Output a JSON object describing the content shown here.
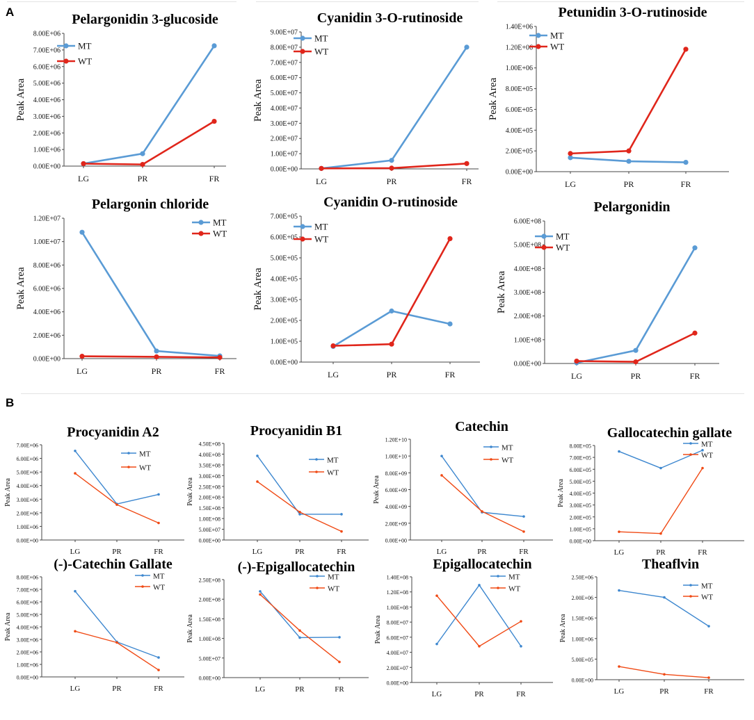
{
  "panels": [
    "A",
    "B"
  ],
  "colors": {
    "MT": "#5a9bd5",
    "WT": "#e0261b",
    "MT_b": "#3d87cf",
    "WT_b": "#f04a15"
  },
  "chart_data": [
    {
      "type": "line",
      "title": "Pelargonidin 3-glucoside",
      "ylabel": "Peak Area",
      "categories": [
        "LG",
        "PR",
        "FR"
      ],
      "yticks": [
        "0.00E+00",
        "1.00E+06",
        "2.00E+06",
        "3.00E+06",
        "4.00E+06",
        "5.00E+06",
        "6.00E+06",
        "7.00E+06",
        "8.00E+06"
      ],
      "ylim": [
        0,
        8000000
      ],
      "series": [
        {
          "name": "MT",
          "values": [
            150000,
            750000,
            7250000
          ]
        },
        {
          "name": "WT",
          "values": [
            150000,
            100000,
            2700000
          ]
        }
      ]
    },
    {
      "type": "line",
      "title": "Cyanidin 3-O-rutinoside",
      "ylabel": "Peak Area",
      "categories": [
        "LG",
        "PR",
        "FR"
      ],
      "yticks": [
        "0.00E+00",
        "1.00E+07",
        "2.00E+07",
        "3.00E+07",
        "4.00E+07",
        "5.00E+07",
        "6.00E+07",
        "7.00E+07",
        "8.00E+07",
        "9.00E+07"
      ],
      "ylim": [
        0,
        90000000
      ],
      "series": [
        {
          "name": "MT",
          "values": [
            300000,
            5600000,
            80000000
          ]
        },
        {
          "name": "WT",
          "values": [
            300000,
            500000,
            3500000
          ]
        }
      ]
    },
    {
      "type": "line",
      "title": "Petunidin 3-O-rutinoside",
      "ylabel": "Peak Area",
      "categories": [
        "LG",
        "PR",
        "FR"
      ],
      "yticks": [
        "0.00E+00",
        "2.00E+05",
        "4.00E+05",
        "6.00E+05",
        "8.00E+05",
        "1.00E+06",
        "1.20E+06",
        "1.40E+06"
      ],
      "ylim": [
        0,
        1400000
      ],
      "series": [
        {
          "name": "MT",
          "values": [
            135000,
            100000,
            90000
          ]
        },
        {
          "name": "WT",
          "values": [
            175000,
            200000,
            1180000
          ]
        }
      ]
    },
    {
      "type": "line",
      "title": "Pelargonin chloride",
      "ylabel": "Peak Area",
      "categories": [
        "LG",
        "PR",
        "FR"
      ],
      "yticks": [
        "0.00E+00",
        "2.00E+06",
        "4.00E+06",
        "6.00E+06",
        "8.00E+06",
        "1.00E+07",
        "1.20E+07"
      ],
      "ylim": [
        0,
        12000000
      ],
      "series": [
        {
          "name": "MT",
          "values": [
            10800000,
            650000,
            230000
          ]
        },
        {
          "name": "WT",
          "values": [
            200000,
            150000,
            100000
          ]
        }
      ]
    },
    {
      "type": "line",
      "title": "Cyanidin O-rutinoside",
      "ylabel": "Peak Area",
      "categories": [
        "LG",
        "PR",
        "FR"
      ],
      "yticks": [
        "0.00E+00",
        "1.00E+05",
        "2.00E+05",
        "3.00E+05",
        "4.00E+05",
        "5.00E+05",
        "6.00E+05",
        "7.00E+05"
      ],
      "ylim": [
        0,
        700000
      ],
      "series": [
        {
          "name": "MT",
          "values": [
            75000,
            245000,
            183000
          ]
        },
        {
          "name": "WT",
          "values": [
            78000,
            86000,
            592000
          ]
        }
      ]
    },
    {
      "type": "line",
      "title": "Pelargonidin",
      "ylabel": "Peak Area",
      "categories": [
        "LG",
        "PR",
        "FR"
      ],
      "yticks": [
        "0.00E+00",
        "1.00E+08",
        "2.00E+08",
        "3.00E+08",
        "4.00E+08",
        "5.00E+08",
        "6.00E+08"
      ],
      "ylim": [
        0,
        600000000
      ],
      "series": [
        {
          "name": "MT",
          "values": [
            3000000,
            55000000,
            487000000
          ]
        },
        {
          "name": "WT",
          "values": [
            10000000,
            7000000,
            128000000
          ]
        }
      ]
    },
    {
      "type": "line",
      "title": "Procyanidin A2",
      "ylabel": "Peak Area",
      "categories": [
        "LG",
        "PR",
        "FR"
      ],
      "yticks": [
        "0.00E+00",
        "1.00E+06",
        "2.00E+06",
        "3.00E+06",
        "4.00E+06",
        "5.00E+06",
        "6.00E+06",
        "7.00E+06"
      ],
      "ylim": [
        0,
        7000000
      ],
      "series": [
        {
          "name": "MT",
          "values": [
            6550000,
            2650000,
            3350000
          ]
        },
        {
          "name": "WT",
          "values": [
            4900000,
            2600000,
            1250000
          ]
        }
      ]
    },
    {
      "type": "line",
      "title": "Procyanidin B1",
      "ylabel": "Peak Area",
      "categories": [
        "LG",
        "PR",
        "FR"
      ],
      "yticks": [
        "0.00E+00",
        "5.00E+07",
        "1.00E+08",
        "1.50E+08",
        "2.00E+08",
        "2.50E+08",
        "3.00E+08",
        "3.50E+08",
        "4.00E+08",
        "4.50E+08"
      ],
      "ylim": [
        0,
        450000000
      ],
      "series": [
        {
          "name": "MT",
          "values": [
            392000000,
            120000000,
            120000000
          ]
        },
        {
          "name": "WT",
          "values": [
            272000000,
            130000000,
            40000000
          ]
        }
      ]
    },
    {
      "type": "line",
      "title": "Catechin",
      "ylabel": "Peak Area",
      "categories": [
        "LG",
        "PR",
        "FR"
      ],
      "yticks": [
        "0.00E+00",
        "2.00E+09",
        "4.00E+09",
        "6.00E+09",
        "8.00E+09",
        "1.00E+10",
        "1.20E+10"
      ],
      "ylim": [
        0,
        12000000000
      ],
      "series": [
        {
          "name": "MT",
          "values": [
            10000000000,
            3300000000,
            2800000000
          ]
        },
        {
          "name": "WT",
          "values": [
            7700000000,
            3400000000,
            1000000000
          ]
        }
      ]
    },
    {
      "type": "line",
      "title": "Gallocatechin gallate",
      "ylabel": "Peak Area",
      "categories": [
        "LG",
        "PR",
        "FR"
      ],
      "yticks": [
        "0.00E+00",
        "1.00E+05",
        "2.00E+05",
        "3.00E+05",
        "4.00E+05",
        "5.00E+05",
        "6.00E+05",
        "7.00E+05",
        "8.00E+05"
      ],
      "ylim": [
        0,
        800000
      ],
      "series": [
        {
          "name": "MT",
          "values": [
            750000,
            610000,
            760000
          ]
        },
        {
          "name": "WT",
          "values": [
            75000,
            60000,
            610000
          ]
        }
      ]
    },
    {
      "type": "line",
      "title": "(-)-Catechin Gallate",
      "ylabel": "Peak Area",
      "categories": [
        "LG",
        "PR",
        "FR"
      ],
      "yticks": [
        "0.00E+00",
        "1.00E+06",
        "2.00E+06",
        "3.00E+06",
        "4.00E+06",
        "5.00E+06",
        "6.00E+06",
        "7.00E+06",
        "8.00E+06"
      ],
      "ylim": [
        0,
        8000000
      ],
      "series": [
        {
          "name": "MT",
          "values": [
            6850000,
            2800000,
            1550000
          ]
        },
        {
          "name": "WT",
          "values": [
            3650000,
            2750000,
            550000
          ]
        }
      ]
    },
    {
      "type": "line",
      "title": "(-)-Epigallocatechin",
      "ylabel": "Peak Area",
      "categories": [
        "LG",
        "PR",
        "FR"
      ],
      "yticks": [
        "0.00E+00",
        "5.00E+07",
        "1.00E+08",
        "1.50E+08",
        "2.00E+08",
        "2.50E+08"
      ],
      "ylim": [
        0,
        250000000
      ],
      "series": [
        {
          "name": "MT",
          "values": [
            220000000,
            102000000,
            103000000
          ]
        },
        {
          "name": "WT",
          "values": [
            212000000,
            120000000,
            40000000
          ]
        }
      ]
    },
    {
      "type": "line",
      "title": "Epigallocatechin",
      "ylabel": "Peak Area",
      "categories": [
        "LG",
        "PR",
        "FR"
      ],
      "yticks": [
        "0.00E+00",
        "2.00E+07",
        "4.00E+07",
        "6.00E+07",
        "8.00E+07",
        "1.00E+08",
        "1.20E+08",
        "1.40E+08"
      ],
      "ylim": [
        0,
        140000000
      ],
      "series": [
        {
          "name": "MT",
          "values": [
            51000000,
            129000000,
            48000000
          ]
        },
        {
          "name": "WT",
          "values": [
            115000000,
            48000000,
            81000000
          ]
        }
      ]
    },
    {
      "type": "line",
      "title": "Theaflvin",
      "ylabel": "Peak Area",
      "categories": [
        "LG",
        "PR",
        "FR"
      ],
      "yticks": [
        "0.00E+00",
        "5.00E+05",
        "1.00E+06",
        "1.50E+06",
        "2.00E+06",
        "2.50E+06"
      ],
      "ylim": [
        0,
        2500000
      ],
      "series": [
        {
          "name": "MT",
          "values": [
            2170000,
            2000000,
            1300000
          ]
        },
        {
          "name": "WT",
          "values": [
            320000,
            130000,
            50000
          ]
        }
      ]
    }
  ]
}
